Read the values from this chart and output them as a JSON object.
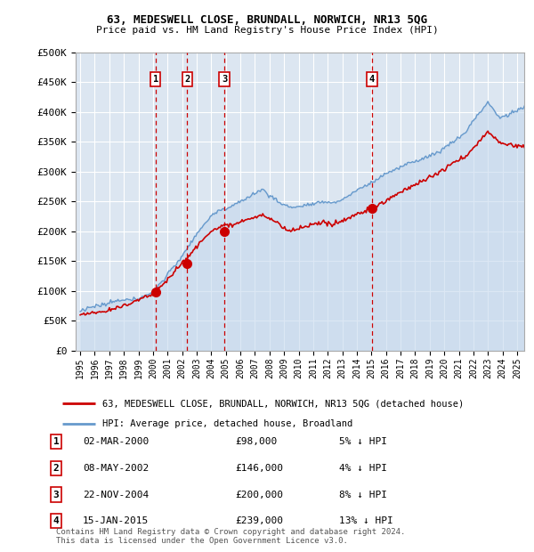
{
  "title1": "63, MEDESWELL CLOSE, BRUNDALL, NORWICH, NR13 5QG",
  "title2": "Price paid vs. HM Land Registry's House Price Index (HPI)",
  "ylabel_ticks": [
    "£0",
    "£50K",
    "£100K",
    "£150K",
    "£200K",
    "£250K",
    "£300K",
    "£350K",
    "£400K",
    "£450K",
    "£500K"
  ],
  "ytick_values": [
    0,
    50000,
    100000,
    150000,
    200000,
    250000,
    300000,
    350000,
    400000,
    450000,
    500000
  ],
  "xlim_start": 1994.7,
  "xlim_end": 2025.5,
  "ylim_bottom": 0,
  "ylim_top": 500000,
  "sales": [
    {
      "num": 1,
      "date_num": 2000.17,
      "price": 98000,
      "label": "02-MAR-2000",
      "price_str": "£98,000",
      "hpi_pct": "5% ↓ HPI"
    },
    {
      "num": 2,
      "date_num": 2002.35,
      "price": 146000,
      "label": "08-MAY-2002",
      "price_str": "£146,000",
      "hpi_pct": "4% ↓ HPI"
    },
    {
      "num": 3,
      "date_num": 2004.9,
      "price": 200000,
      "label": "22-NOV-2004",
      "price_str": "£200,000",
      "hpi_pct": "8% ↓ HPI"
    },
    {
      "num": 4,
      "date_num": 2015.04,
      "price": 239000,
      "label": "15-JAN-2015",
      "price_str": "£239,000",
      "hpi_pct": "13% ↓ HPI"
    }
  ],
  "legend_line1": "63, MEDESWELL CLOSE, BRUNDALL, NORWICH, NR13 5QG (detached house)",
  "legend_line2": "HPI: Average price, detached house, Broadland",
  "footer": "Contains HM Land Registry data © Crown copyright and database right 2024.\nThis data is licensed under the Open Government Licence v3.0.",
  "bg_color": "#dce6f1",
  "grid_color": "#ffffff",
  "red_line_color": "#cc0000",
  "blue_line_color": "#6699cc",
  "blue_fill_color": "#c5d8ed"
}
